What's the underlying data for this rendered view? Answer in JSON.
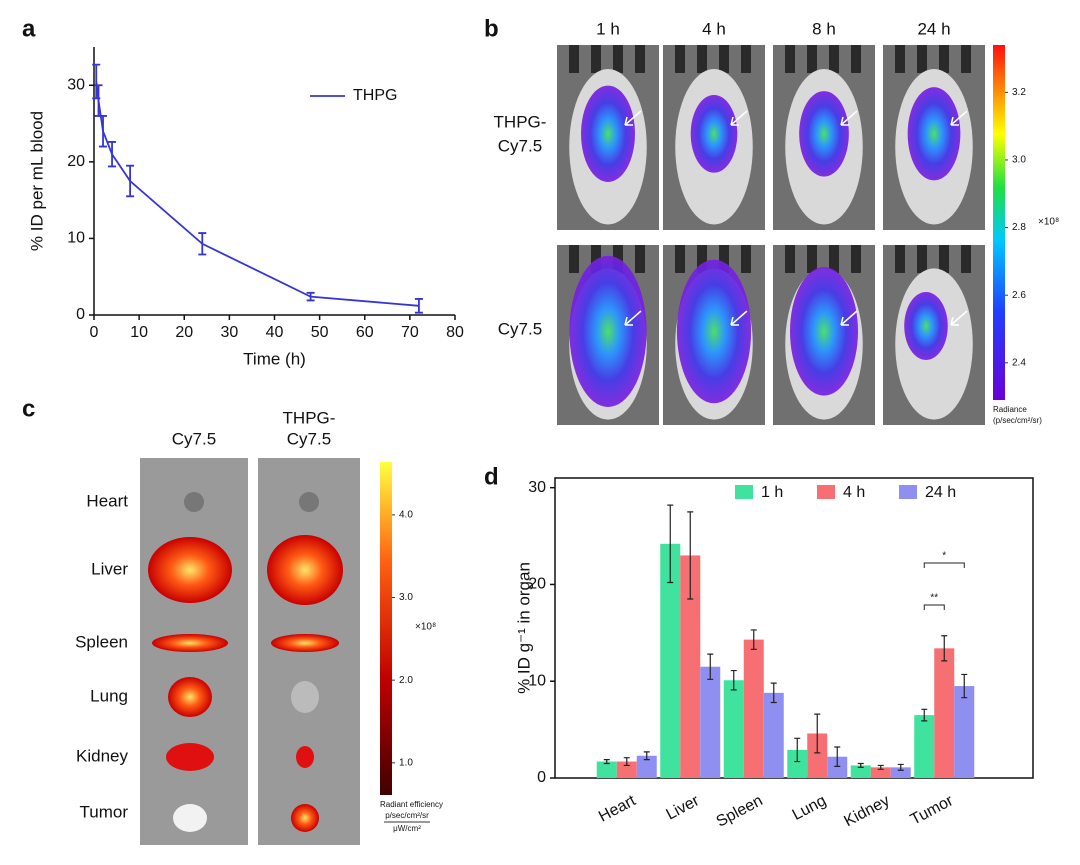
{
  "panel_labels": [
    "a",
    "b",
    "c",
    "d"
  ],
  "imaging": {
    "time_labels": [
      "1 h",
      "4 h",
      "8 h",
      "24 h"
    ],
    "row_labels": [
      [
        "THPG-",
        "Cy7.5"
      ],
      [
        "Cy7.5"
      ]
    ],
    "colorbar": {
      "clim": [
        2.29,
        3.34
      ],
      "ticks": [
        {
          "value": 2.4,
          "label": "2.4"
        },
        {
          "value": 2.6,
          "label": "2.6"
        },
        {
          "value": 2.8,
          "label": "2.8"
        },
        {
          "value": 3,
          "label": "3.0"
        },
        {
          "value": 3.2,
          "label": "3.2"
        }
      ],
      "multiplier": "×10⁸",
      "title": "Radiance",
      "unit": "(p/sec/cm²/sr)"
    }
  },
  "ex_vivo": {
    "column_labels": [
      [
        "Cy7.5"
      ],
      [
        "THPG-",
        "Cy7.5"
      ]
    ],
    "organs": [
      "Heart",
      "Liver",
      "Spleen",
      "Lung",
      "Kidney",
      "Tumor"
    ],
    "colorbar": {
      "clim": [
        0.61,
        4.64
      ],
      "ticks": [
        {
          "value": 1,
          "label": "1.0"
        },
        {
          "value": 2,
          "label": "2.0"
        },
        {
          "value": 3,
          "label": "3.0"
        },
        {
          "value": 4,
          "label": "4.0"
        }
      ],
      "multiplier": "×10⁸",
      "title": "Radiant efficiency",
      "unit_numerator": "p/sec/cm²/sr",
      "unit_denominator": "μW/cm²"
    }
  },
  "chart_data": [
    {
      "type": "line",
      "xlabel": "Time (h)",
      "ylabel": "% ID per mL blood",
      "x": [
        0.5,
        1,
        2,
        4,
        8,
        24,
        48,
        72
      ],
      "series": [
        {
          "name": "THPG",
          "color": "#3535d6",
          "values": [
            30.5,
            28,
            24,
            21,
            17.5,
            9.3,
            2.4,
            1.2
          ],
          "errors": [
            2.2,
            2,
            2,
            1.6,
            2,
            1.4,
            0.5,
            0.9
          ]
        }
      ],
      "xlim": [
        0,
        80
      ],
      "xticks": [
        0,
        10,
        20,
        30,
        40,
        50,
        60,
        70,
        80
      ],
      "ylim": [
        0,
        35
      ],
      "yticks": [
        0,
        10,
        20,
        30
      ],
      "legend": "upper right"
    },
    {
      "type": "bar",
      "ylabel": "% ID g⁻¹ in organ",
      "categories": [
        "Heart",
        "Liver",
        "Spleen",
        "Lung",
        "Kidney",
        "Tumor"
      ],
      "series": [
        {
          "name": "1 h",
          "color": "#3fe39e",
          "values": [
            1.7,
            24.2,
            10.1,
            2.9,
            1.3,
            6.5
          ],
          "errors": [
            0.2,
            4,
            1,
            1.2,
            0.2,
            0.6
          ]
        },
        {
          "name": "4 h",
          "color": "#f56f73",
          "values": [
            1.7,
            23,
            14.3,
            4.6,
            1.1,
            13.4
          ],
          "errors": [
            0.4,
            4.5,
            1,
            2,
            0.2,
            1.3
          ]
        },
        {
          "name": "24 h",
          "color": "#8f8ff2",
          "values": [
            2.3,
            11.5,
            8.8,
            2.2,
            1.1,
            9.5
          ],
          "errors": [
            0.4,
            1.3,
            1,
            1,
            0.3,
            1.2
          ]
        }
      ],
      "ylim": [
        0,
        31
      ],
      "yticks": [
        0,
        10,
        20,
        30
      ],
      "legend": "top",
      "annotations": [
        "*",
        "**"
      ]
    }
  ]
}
